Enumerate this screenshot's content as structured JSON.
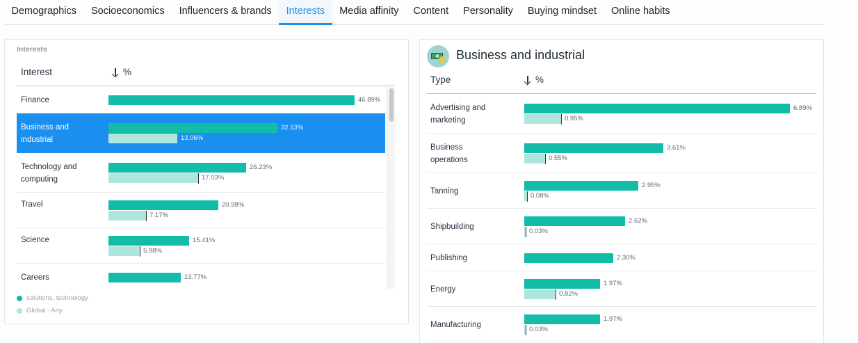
{
  "tabs": [
    {
      "label": "Demographics",
      "active": false
    },
    {
      "label": "Socioeconomics",
      "active": false
    },
    {
      "label": "Influencers & brands",
      "active": false
    },
    {
      "label": "Interests",
      "active": true
    },
    {
      "label": "Media affinity",
      "active": false
    },
    {
      "label": "Content",
      "active": false
    },
    {
      "label": "Personality",
      "active": false
    },
    {
      "label": "Buying mindset",
      "active": false
    },
    {
      "label": "Online habits",
      "active": false
    }
  ],
  "interests_panel": {
    "caption": "Interests",
    "column_label": "Interest",
    "sort_label": "%",
    "sort_icon": "arrow-down-icon",
    "selected_index": 1,
    "rows": [
      {
        "label": "Finance",
        "audience_pct": 46.89,
        "audience_label": "46.89%",
        "global_pct": null,
        "global_label": ""
      },
      {
        "label": "Business and industrial",
        "audience_pct": 32.13,
        "audience_label": "32.13%",
        "global_pct": 13.06,
        "global_label": "13.06%"
      },
      {
        "label": "Technology and computing",
        "audience_pct": 26.23,
        "audience_label": "26.23%",
        "global_pct": 17.03,
        "global_label": "17.03%"
      },
      {
        "label": "Travel",
        "audience_pct": 20.98,
        "audience_label": "20.98%",
        "global_pct": 7.17,
        "global_label": "7.17%"
      },
      {
        "label": "Science",
        "audience_pct": 15.41,
        "audience_label": "15.41%",
        "global_pct": 5.98,
        "global_label": "5.98%"
      },
      {
        "label": "Careers",
        "audience_pct": 13.77,
        "audience_label": "13.77%",
        "global_pct": null,
        "global_label": ""
      }
    ],
    "legend": [
      {
        "label": "solutions, technology",
        "color": "#13bca8"
      },
      {
        "label": "Global - Any",
        "color": "#aee5dd"
      }
    ]
  },
  "detail_panel": {
    "title": "Business and industrial",
    "icon": "money-icon",
    "column_label": "Type",
    "sort_label": "%",
    "sort_icon": "arrow-down-icon",
    "rows": [
      {
        "label": "Advertising and marketing",
        "audience_pct": 6.89,
        "audience_label": "6.89%",
        "global_pct": 0.95,
        "global_label": "0.95%"
      },
      {
        "label": "Business operations",
        "audience_pct": 3.61,
        "audience_label": "3.61%",
        "global_pct": 0.55,
        "global_label": "0.55%"
      },
      {
        "label": "Tanning",
        "audience_pct": 2.95,
        "audience_label": "2.95%",
        "global_pct": 0.08,
        "global_label": "0.08%"
      },
      {
        "label": "Shipbuilding",
        "audience_pct": 2.62,
        "audience_label": "2.62%",
        "global_pct": 0.03,
        "global_label": "0.03%"
      },
      {
        "label": "Publishing",
        "audience_pct": 2.3,
        "audience_label": "2.30%",
        "global_pct": null,
        "global_label": ""
      },
      {
        "label": "Energy",
        "audience_pct": 1.97,
        "audience_label": "1.97%",
        "global_pct": 0.82,
        "global_label": "0.82%"
      },
      {
        "label": "Manufacturing",
        "audience_pct": 1.97,
        "audience_label": "1.97%",
        "global_pct": 0.03,
        "global_label": "0.03%"
      }
    ]
  },
  "colors": {
    "accent": "#1d8fea",
    "selected_row": "#1a8ff0",
    "audience_bar": "#13bca8",
    "global_bar": "#aee5dd"
  }
}
